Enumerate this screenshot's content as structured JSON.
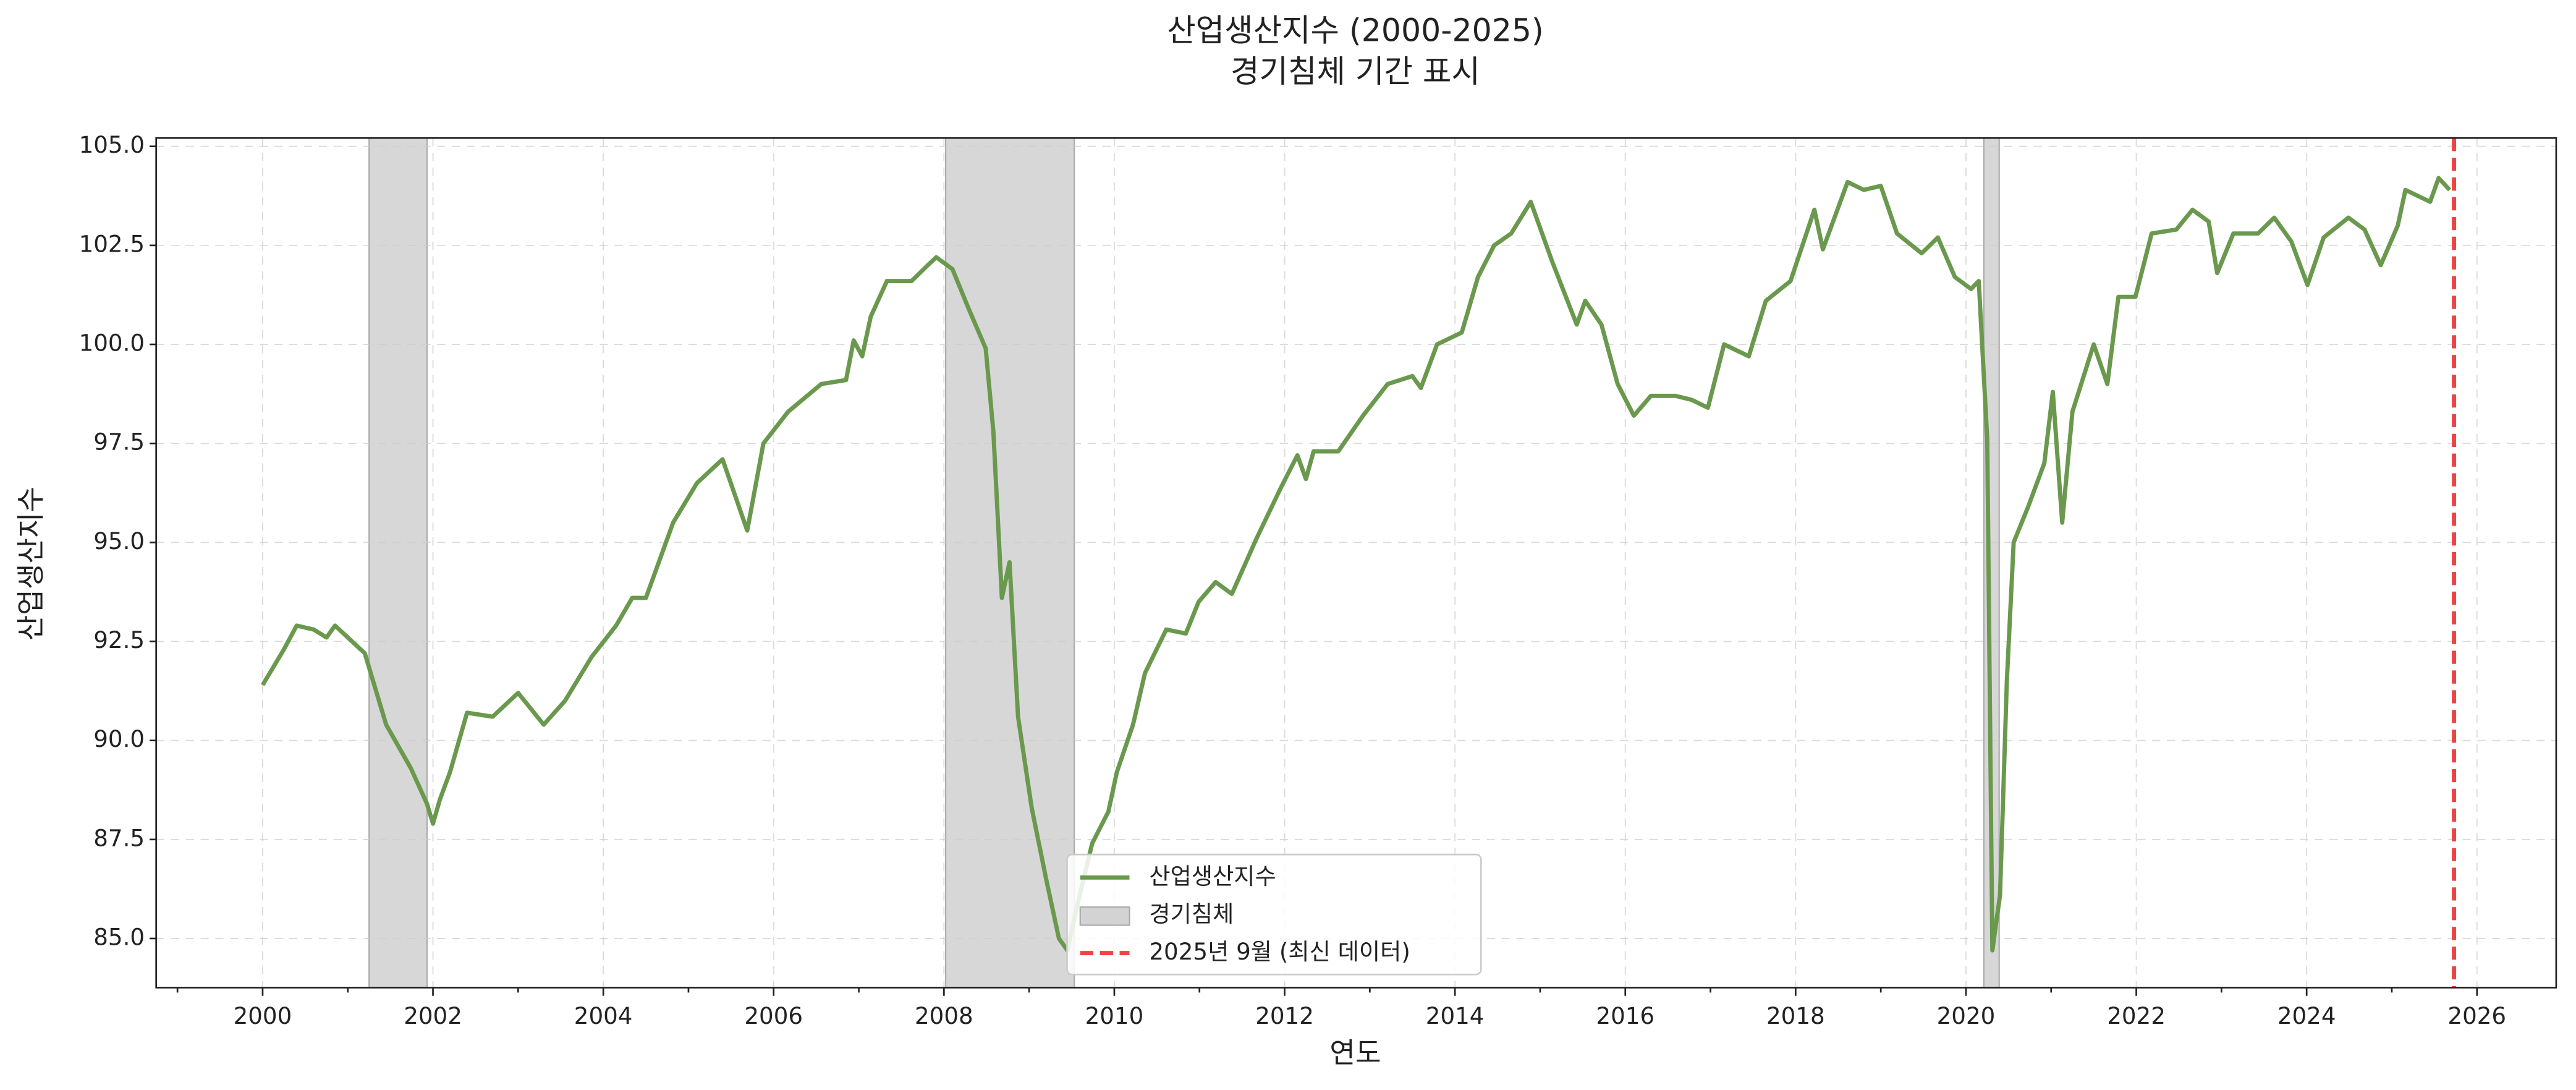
{
  "chart_data": {
    "type": "line",
    "title": "산업생산지수 (2000-2025)",
    "subtitle": "경기침체 기간 표시",
    "x_label": "연도",
    "y_label": "산업생산지수",
    "xlim": [
      1998.75,
      2026.93
    ],
    "ylim": [
      83.76,
      105.21
    ],
    "xticks": [
      2000,
      2002,
      2004,
      2006,
      2008,
      2010,
      2012,
      2014,
      2016,
      2018,
      2020,
      2022,
      2024,
      2026
    ],
    "xminorticks": [
      1999,
      2001,
      2003,
      2005,
      2007,
      2009,
      2011,
      2013,
      2015,
      2017,
      2019,
      2021,
      2023,
      2025
    ],
    "yticks": [
      {
        "value": 85,
        "label": "85.0"
      },
      {
        "value": 87.5,
        "label": "87.5"
      },
      {
        "value": 90,
        "label": "90.0"
      },
      {
        "value": 92.5,
        "label": "92.5"
      },
      {
        "value": 95,
        "label": "95.0"
      },
      {
        "value": 97.5,
        "label": "97.5"
      },
      {
        "value": 100,
        "label": "100.0"
      },
      {
        "value": 102.5,
        "label": "102.5"
      },
      {
        "value": 105,
        "label": "105.0"
      }
    ],
    "grid": true,
    "legend": "lower center",
    "x": [
      2000.0,
      2000.25,
      2000.4,
      2000.6,
      2000.75,
      2000.85,
      2001.0,
      2001.2,
      2001.45,
      2001.74,
      2001.93,
      2002.0,
      2002.08,
      2002.2,
      2002.4,
      2002.7,
      2003.0,
      2003.3,
      2003.55,
      2003.86,
      2004.15,
      2004.34,
      2004.5,
      2004.82,
      2005.1,
      2005.4,
      2005.69,
      2005.88,
      2006.17,
      2006.56,
      2006.85,
      2006.94,
      2007.04,
      2007.14,
      2007.33,
      2007.62,
      2007.81,
      2007.91,
      2008.1,
      2008.29,
      2008.49,
      2008.58,
      2008.68,
      2008.77,
      2008.87,
      2009.03,
      2009.2,
      2009.35,
      2009.45,
      2009.55,
      2009.74,
      2009.93,
      2010.03,
      2010.22,
      2010.36,
      2010.61,
      2010.84,
      2010.99,
      2011.19,
      2011.38,
      2011.67,
      2011.96,
      2012.15,
      2012.25,
      2012.34,
      2012.63,
      2012.92,
      2013.21,
      2013.5,
      2013.6,
      2013.79,
      2014.08,
      2014.27,
      2014.46,
      2014.66,
      2014.89,
      2015.14,
      2015.43,
      2015.53,
      2015.72,
      2015.91,
      2016.1,
      2016.3,
      2016.59,
      2016.78,
      2016.97,
      2017.16,
      2017.45,
      2017.65,
      2017.94,
      2018.22,
      2018.32,
      2018.61,
      2018.8,
      2019.0,
      2019.19,
      2019.48,
      2019.67,
      2019.87,
      2020.06,
      2020.15,
      2020.25,
      2020.31,
      2020.4,
      2020.48,
      2020.56,
      2020.73,
      2020.92,
      2021.02,
      2021.13,
      2021.25,
      2021.5,
      2021.66,
      2021.79,
      2021.99,
      2022.18,
      2022.47,
      2022.66,
      2022.85,
      2022.95,
      2023.14,
      2023.43,
      2023.62,
      2023.82,
      2024.01,
      2024.2,
      2024.49,
      2024.68,
      2024.87,
      2025.07,
      2025.16,
      2025.45,
      2025.55,
      2025.68
    ],
    "series": [
      {
        "name": "산업생산지수",
        "color": "#6a994e",
        "values": [
          91.4,
          92.3,
          92.9,
          92.8,
          92.6,
          92.9,
          92.6,
          92.2,
          90.4,
          89.3,
          88.4,
          87.9,
          88.5,
          89.2,
          90.7,
          90.6,
          91.2,
          90.4,
          91.0,
          92.1,
          92.9,
          93.6,
          93.6,
          95.5,
          96.5,
          97.1,
          95.3,
          97.5,
          98.3,
          99.0,
          99.1,
          100.1,
          99.7,
          100.7,
          101.6,
          101.6,
          102.0,
          102.2,
          101.9,
          100.9,
          99.9,
          97.8,
          93.6,
          94.5,
          90.6,
          88.3,
          86.5,
          85.0,
          84.7,
          85.7,
          87.4,
          88.2,
          89.2,
          90.4,
          91.7,
          92.8,
          92.7,
          93.5,
          94.0,
          93.7,
          95.1,
          96.4,
          97.2,
          96.6,
          97.3,
          97.3,
          98.2,
          99.0,
          99.2,
          98.9,
          100.0,
          100.3,
          101.7,
          102.5,
          102.8,
          103.6,
          102.1,
          100.5,
          101.1,
          100.5,
          99.0,
          98.2,
          98.7,
          98.7,
          98.6,
          98.4,
          100.0,
          99.7,
          101.1,
          101.6,
          103.4,
          102.4,
          104.1,
          103.9,
          104.0,
          102.8,
          102.3,
          102.7,
          101.7,
          101.4,
          101.6,
          97.6,
          84.7,
          86.1,
          91.5,
          95.0,
          95.9,
          97.0,
          98.8,
          95.5,
          98.3,
          100.0,
          99.0,
          101.2,
          101.2,
          102.8,
          102.9,
          103.4,
          103.1,
          101.8,
          102.8,
          102.8,
          103.2,
          102.6,
          101.5,
          102.7,
          103.2,
          102.9,
          102.0,
          103.0,
          103.9,
          103.6,
          104.2,
          103.9
        ]
      }
    ],
    "recessions": {
      "name": "경기침체",
      "color": "#d3d3d3",
      "spans": [
        [
          2001.25,
          2001.93
        ],
        [
          2008.02,
          2009.53
        ],
        [
          2020.21,
          2020.39
        ]
      ]
    },
    "vline": {
      "name": "2025년 9월 (최신 데이터)",
      "color": "#ee4444",
      "x": 2025.73
    }
  }
}
